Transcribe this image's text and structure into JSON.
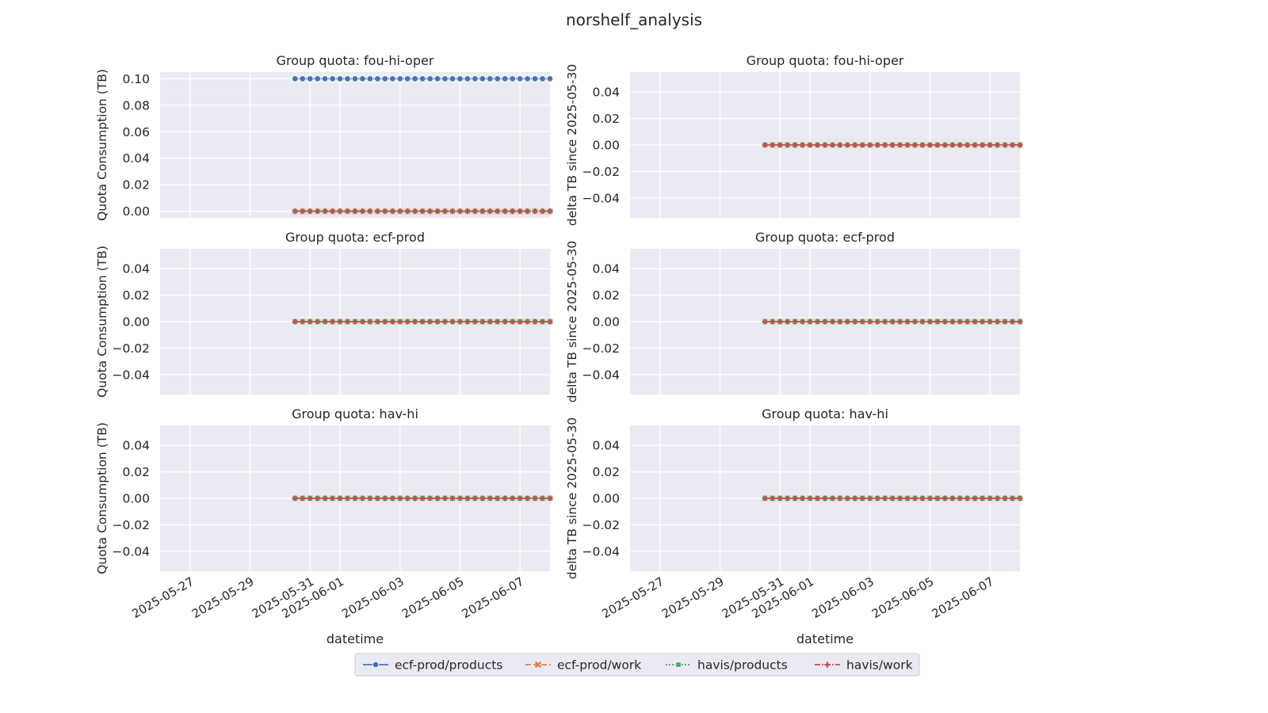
{
  "figure_title": "norshelf_analysis",
  "legend": [
    {
      "label": "ecf-prod/products",
      "color": "#4c72b0",
      "marker": "circle",
      "dash": "solid"
    },
    {
      "label": "ecf-prod/work",
      "color": "#dd8452",
      "marker": "x",
      "dash": "dashed"
    },
    {
      "label": "havis/products",
      "color": "#55a868",
      "marker": "square",
      "dash": "dotted"
    },
    {
      "label": "havis/work",
      "color": "#c44e52",
      "marker": "plus",
      "dash": "dashdot"
    }
  ],
  "chart_data": [
    {
      "type": "line",
      "title": "Group quota: fou-hi-oper",
      "xlabel": "",
      "ylabel": "Quota Consumption (TB)",
      "xlim": [
        "2025-05-26",
        "2025-06-08"
      ],
      "ylim": [
        -0.005,
        0.105
      ],
      "yticks": [
        0.0,
        0.02,
        0.04,
        0.06,
        0.08,
        0.1
      ],
      "ytick_labels": [
        "0.00",
        "0.02",
        "0.04",
        "0.06",
        "0.08",
        "0.10"
      ],
      "xtick_labels": [
        "2025-05-27",
        "2025-05-29",
        "2025-05-31",
        "2025-06-01",
        "2025-06-03",
        "2025-06-05",
        "2025-06-07"
      ],
      "x_start": "2025-05-30 12:00",
      "x_end": "2025-06-08 00:00",
      "n_points": 35,
      "series": [
        {
          "name": "ecf-prod/products",
          "value": 0.1
        },
        {
          "name": "ecf-prod/work",
          "value": 0.0
        },
        {
          "name": "havis/products",
          "value": 0.0
        },
        {
          "name": "havis/work",
          "value": 0.0
        }
      ]
    },
    {
      "type": "line",
      "title": "Group quota: fou-hi-oper",
      "xlabel": "",
      "ylabel": "delta TB since 2025-05-30",
      "xlim": [
        "2025-05-26",
        "2025-06-08"
      ],
      "ylim": [
        -0.055,
        0.055
      ],
      "yticks": [
        -0.04,
        -0.02,
        0.0,
        0.02,
        0.04
      ],
      "ytick_labels": [
        "−0.04",
        "−0.02",
        "0.00",
        "0.02",
        "0.04"
      ],
      "xtick_labels": [
        "2025-05-27",
        "2025-05-29",
        "2025-05-31",
        "2025-06-01",
        "2025-06-03",
        "2025-06-05",
        "2025-06-07"
      ],
      "x_start": "2025-05-30 12:00",
      "x_end": "2025-06-08 00:00",
      "n_points": 35,
      "series": [
        {
          "name": "ecf-prod/products",
          "value": 0.0
        },
        {
          "name": "ecf-prod/work",
          "value": 0.0
        },
        {
          "name": "havis/products",
          "value": 0.0
        },
        {
          "name": "havis/work",
          "value": 0.0
        }
      ]
    },
    {
      "type": "line",
      "title": "Group quota: ecf-prod",
      "xlabel": "",
      "ylabel": "Quota Consumption (TB)",
      "xlim": [
        "2025-05-26",
        "2025-06-08"
      ],
      "ylim": [
        -0.055,
        0.055
      ],
      "yticks": [
        -0.04,
        -0.02,
        0.0,
        0.02,
        0.04
      ],
      "ytick_labels": [
        "−0.04",
        "−0.02",
        "0.00",
        "0.02",
        "0.04"
      ],
      "xtick_labels": [
        "2025-05-27",
        "2025-05-29",
        "2025-05-31",
        "2025-06-01",
        "2025-06-03",
        "2025-06-05",
        "2025-06-07"
      ],
      "x_start": "2025-05-30 12:00",
      "x_end": "2025-06-08 00:00",
      "n_points": 35,
      "series": [
        {
          "name": "ecf-prod/products",
          "value": 0.0
        },
        {
          "name": "ecf-prod/work",
          "value": 0.0
        },
        {
          "name": "havis/products",
          "value": 0.0
        },
        {
          "name": "havis/work",
          "value": 0.0
        }
      ]
    },
    {
      "type": "line",
      "title": "Group quota: ecf-prod",
      "xlabel": "",
      "ylabel": "delta TB since 2025-05-30",
      "xlim": [
        "2025-05-26",
        "2025-06-08"
      ],
      "ylim": [
        -0.055,
        0.055
      ],
      "yticks": [
        -0.04,
        -0.02,
        0.0,
        0.02,
        0.04
      ],
      "ytick_labels": [
        "−0.04",
        "−0.02",
        "0.00",
        "0.02",
        "0.04"
      ],
      "xtick_labels": [
        "2025-05-27",
        "2025-05-29",
        "2025-05-31",
        "2025-06-01",
        "2025-06-03",
        "2025-06-05",
        "2025-06-07"
      ],
      "x_start": "2025-05-30 12:00",
      "x_end": "2025-06-08 00:00",
      "n_points": 35,
      "series": [
        {
          "name": "ecf-prod/products",
          "value": 0.0
        },
        {
          "name": "ecf-prod/work",
          "value": 0.0
        },
        {
          "name": "havis/products",
          "value": 0.0
        },
        {
          "name": "havis/work",
          "value": 0.0
        }
      ]
    },
    {
      "type": "line",
      "title": "Group quota: hav-hi",
      "xlabel": "datetime",
      "ylabel": "Quota Consumption (TB)",
      "xlim": [
        "2025-05-26",
        "2025-06-08"
      ],
      "ylim": [
        -0.055,
        0.055
      ],
      "yticks": [
        -0.04,
        -0.02,
        0.0,
        0.02,
        0.04
      ],
      "ytick_labels": [
        "−0.04",
        "−0.02",
        "0.00",
        "0.02",
        "0.04"
      ],
      "xtick_labels": [
        "2025-05-27",
        "2025-05-29",
        "2025-05-31",
        "2025-06-01",
        "2025-06-03",
        "2025-06-05",
        "2025-06-07"
      ],
      "x_start": "2025-05-30 12:00",
      "x_end": "2025-06-08 00:00",
      "n_points": 35,
      "series": [
        {
          "name": "ecf-prod/products",
          "value": 0.0
        },
        {
          "name": "ecf-prod/work",
          "value": 0.0
        },
        {
          "name": "havis/products",
          "value": 0.0
        },
        {
          "name": "havis/work",
          "value": 0.0
        }
      ]
    },
    {
      "type": "line",
      "title": "Group quota: hav-hi",
      "xlabel": "datetime",
      "ylabel": "delta TB since 2025-05-30",
      "xlim": [
        "2025-05-26",
        "2025-06-08"
      ],
      "ylim": [
        -0.055,
        0.055
      ],
      "yticks": [
        -0.04,
        -0.02,
        0.0,
        0.02,
        0.04
      ],
      "ytick_labels": [
        "−0.04",
        "−0.02",
        "0.00",
        "0.02",
        "0.04"
      ],
      "xtick_labels": [
        "2025-05-27",
        "2025-05-29",
        "2025-05-31",
        "2025-06-01",
        "2025-06-03",
        "2025-06-05",
        "2025-06-07"
      ],
      "x_start": "2025-05-30 12:00",
      "x_end": "2025-06-08 00:00",
      "n_points": 35,
      "series": [
        {
          "name": "ecf-prod/products",
          "value": 0.0
        },
        {
          "name": "ecf-prod/work",
          "value": 0.0
        },
        {
          "name": "havis/products",
          "value": 0.0
        },
        {
          "name": "havis/work",
          "value": 0.0
        }
      ]
    }
  ]
}
